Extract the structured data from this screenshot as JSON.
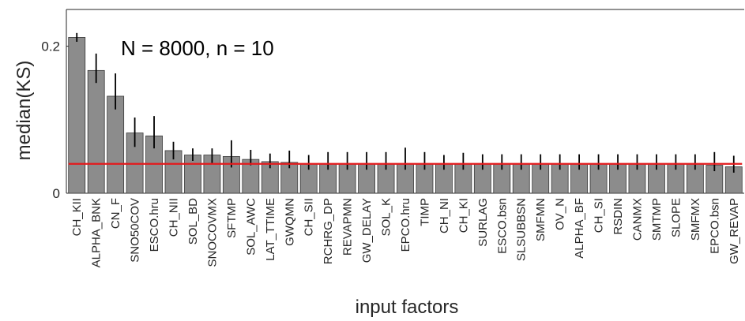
{
  "chart_data": {
    "type": "bar",
    "annotation": "N = 8000, n = 10",
    "xlabel": "input factors",
    "ylabel": "median(KS)",
    "ylim": [
      0,
      0.25
    ],
    "yticks": [
      0,
      0.2
    ],
    "ytick_labels": [
      "0",
      "0.2"
    ],
    "grid": false,
    "categories": [
      "CH_KII",
      "ALPHA_BNK",
      "CN_F",
      "SNO50COV",
      "ESCO.hru",
      "CH_NII",
      "SOL_BD",
      "SNOCOVMX",
      "SFTMP",
      "SOL_AWC",
      "LAT_TTIME",
      "GWQMN",
      "CH_SII",
      "RCHRG_DP",
      "REVAPMN",
      "GW_DELAY",
      "SOL_K",
      "EPCO.hru",
      "TIMP",
      "CH_NI",
      "CH_KI",
      "SURLAG",
      "ESCO.bsn",
      "SLSUBBSN",
      "SMFMN",
      "OV_N",
      "ALPHA_BF",
      "CH_SI",
      "RSDIN",
      "CANMX",
      "SMTMP",
      "SLOPE",
      "SMFMX",
      "EPCO.bsn",
      "GW_REVAP"
    ],
    "values": [
      0.212,
      0.167,
      0.132,
      0.082,
      0.078,
      0.058,
      0.052,
      0.052,
      0.05,
      0.046,
      0.043,
      0.042,
      0.04,
      0.04,
      0.04,
      0.04,
      0.04,
      0.04,
      0.04,
      0.04,
      0.04,
      0.04,
      0.04,
      0.04,
      0.04,
      0.04,
      0.04,
      0.04,
      0.04,
      0.04,
      0.04,
      0.04,
      0.04,
      0.038,
      0.036
    ],
    "lower": [
      0.206,
      0.15,
      0.114,
      0.063,
      0.061,
      0.046,
      0.044,
      0.041,
      0.035,
      0.038,
      0.034,
      0.034,
      0.032,
      0.032,
      0.032,
      0.032,
      0.032,
      0.032,
      0.032,
      0.032,
      0.032,
      0.032,
      0.032,
      0.032,
      0.032,
      0.032,
      0.032,
      0.032,
      0.032,
      0.032,
      0.032,
      0.032,
      0.032,
      0.03,
      0.028
    ],
    "upper": [
      0.218,
      0.19,
      0.163,
      0.103,
      0.105,
      0.07,
      0.061,
      0.061,
      0.072,
      0.059,
      0.054,
      0.058,
      0.052,
      0.056,
      0.056,
      0.056,
      0.056,
      0.062,
      0.056,
      0.052,
      0.055,
      0.053,
      0.053,
      0.053,
      0.053,
      0.053,
      0.053,
      0.053,
      0.053,
      0.053,
      0.053,
      0.053,
      0.053,
      0.056,
      0.051
    ],
    "threshold": 0.04,
    "colors": {
      "bar": "#8c8c8c",
      "bar_edge": "#3a3a3a",
      "errorbar": "#000000",
      "threshold": "#e31a1c",
      "axis": "#262626"
    }
  }
}
